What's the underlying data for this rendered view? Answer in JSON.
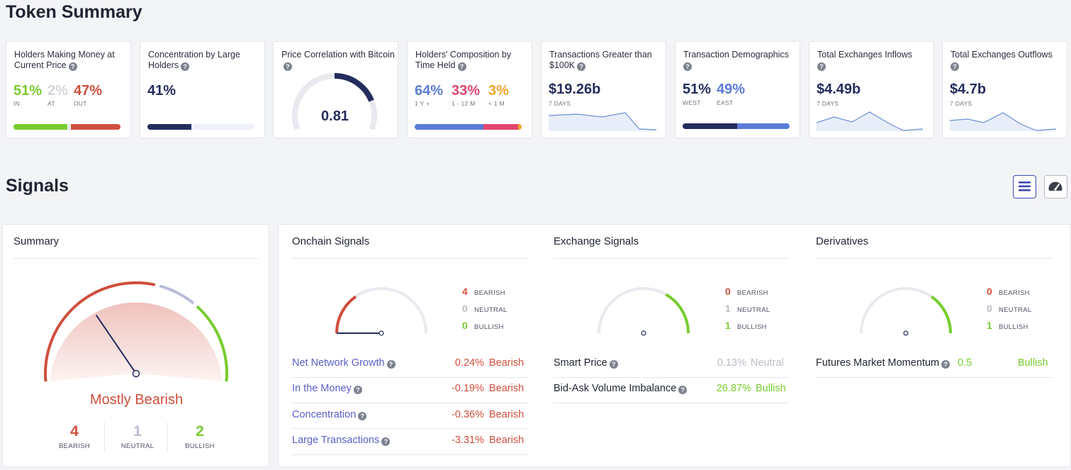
{
  "token_summary": {
    "title": "Token Summary",
    "cards": {
      "money": {
        "title": "Holders Making Money at Current Price",
        "in": "51%",
        "at": "2%",
        "out": "47%",
        "in_lbl": "IN",
        "at_lbl": "AT",
        "out_lbl": "OUT",
        "in_frac": 0.51,
        "at_frac": 0.02,
        "out_frac": 0.47
      },
      "concentration": {
        "title": "Concentration by Large Holders",
        "value": "41%",
        "frac": 0.41
      },
      "correlation": {
        "title": "Price Correlation with Bitcoin",
        "value": "0.81",
        "frac": 0.81
      },
      "composition": {
        "title": "Holders' Composition by Time Held",
        "long": "64%",
        "mid": "33%",
        "short": "3%",
        "long_lbl": "1 Y +",
        "mid_lbl": "1 - 12 M",
        "short_lbl": "< 1 M",
        "long_frac": 0.64,
        "mid_frac": 0.33,
        "short_frac": 0.03
      },
      "large_tx": {
        "title": "Transactions Greater than $100K",
        "value": "$19.26b",
        "period": "7 DAYS"
      },
      "demographics": {
        "title": "Transaction Demographics",
        "west": "51%",
        "east": "49%",
        "west_lbl": "WEST",
        "east_lbl": "EAST",
        "west_frac": 0.51,
        "east_frac": 0.49
      },
      "inflows": {
        "title": "Total Exchanges Inflows",
        "value": "$4.49b",
        "period": "7 DAYS"
      },
      "outflows": {
        "title": "Total Exchanges Outflows",
        "value": "$4.7b",
        "period": "7 DAYS"
      }
    }
  },
  "signals": {
    "title": "Signals",
    "view_list_icon": "list-icon",
    "view_gauge_icon": "gauge-icon",
    "summary": {
      "title": "Summary",
      "verdict": "Mostly Bearish",
      "bearish": "4",
      "neutral": "1",
      "bullish": "2",
      "bearish_lbl": "BEARISH",
      "neutral_lbl": "NEUTRAL",
      "bullish_lbl": "BULLISH"
    },
    "onchain": {
      "title": "Onchain Signals",
      "bearish": "4",
      "neutral": "0",
      "bullish": "0",
      "bearish_lbl": "BEARISH",
      "neutral_lbl": "NEUTRAL",
      "bullish_lbl": "BULLISH",
      "rows": [
        {
          "name": "Net Network Growth",
          "value": "0.24%",
          "signal": "Bearish"
        },
        {
          "name": "In the Money",
          "value": "-0.19%",
          "signal": "Bearish"
        },
        {
          "name": "Concentration",
          "value": "-0.36%",
          "signal": "Bearish"
        },
        {
          "name": "Large Transactions",
          "value": "-3.31%",
          "signal": "Bearish"
        }
      ]
    },
    "exchange": {
      "title": "Exchange Signals",
      "bearish": "0",
      "neutral": "1",
      "bullish": "1",
      "bearish_lbl": "BEARISH",
      "neutral_lbl": "NEUTRAL",
      "bullish_lbl": "BULLISH",
      "rows": [
        {
          "name": "Smart Price",
          "value": "0.13%",
          "signal": "Neutral"
        },
        {
          "name": "Bid-Ask Volume Imbalance",
          "value": "26.87%",
          "signal": "Bullish"
        }
      ]
    },
    "derivatives": {
      "title": "Derivatives",
      "bearish": "0",
      "neutral": "0",
      "bullish": "1",
      "bearish_lbl": "BEARISH",
      "neutral_lbl": "NEUTRAL",
      "bullish_lbl": "BULLISH",
      "rows": [
        {
          "name": "Futures Market Momentum",
          "value": "0.5",
          "signal": "Bullish"
        }
      ]
    }
  },
  "colors": {
    "bearish": "#cf4f3d",
    "neutral": "#b9bcc6",
    "bullish": "#78cc2e",
    "navy": "#242d5c",
    "blue": "#5b7bd8"
  }
}
